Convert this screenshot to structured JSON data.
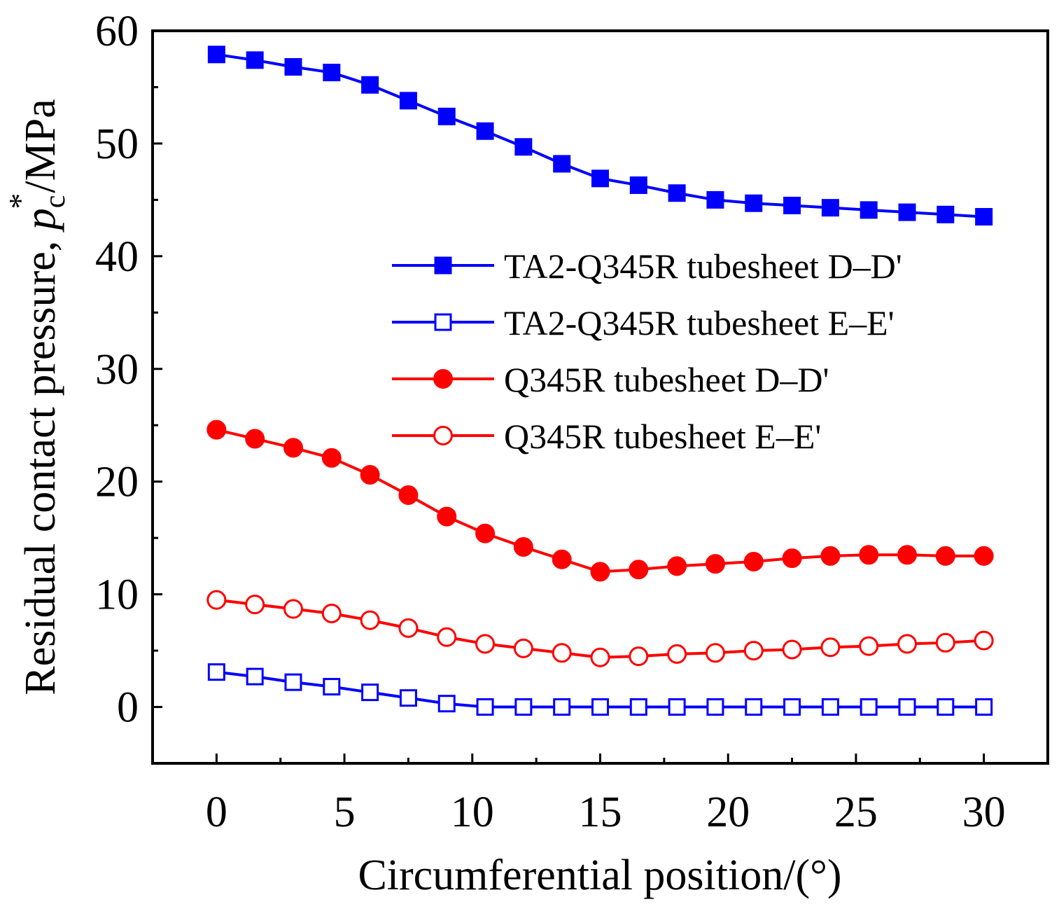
{
  "chart_data": {
    "type": "line",
    "xlabel": "Circumferential position/(°)",
    "ylabel": {
      "prefix": "Residual contact pressure, ",
      "symbol": "p",
      "subscript": "c",
      "superscript": "*",
      "suffix": "/MPa"
    },
    "xlim": [
      -2.5,
      32.5
    ],
    "ylim": [
      -5,
      60
    ],
    "xticks": [
      0,
      5,
      10,
      15,
      20,
      25,
      30
    ],
    "yticks": [
      0,
      10,
      20,
      30,
      40,
      50,
      60
    ],
    "xtick_labels": [
      "0",
      "5",
      "10",
      "15",
      "20",
      "25",
      "30"
    ],
    "ytick_labels": [
      "0",
      "10",
      "20",
      "30",
      "40",
      "50",
      "60"
    ],
    "legend_position": "center-right",
    "x": [
      0,
      1.5,
      3,
      4.5,
      6,
      7.5,
      9,
      10.5,
      12,
      13.5,
      15,
      16.5,
      18,
      19.5,
      21,
      22.5,
      24,
      25.5,
      27,
      28.5,
      30
    ],
    "series": [
      {
        "name": "TA2-Q345R tubesheet D–D'",
        "color": "#0000ff",
        "marker": "square",
        "filled": true,
        "values": [
          57.9,
          57.4,
          56.8,
          56.3,
          55.2,
          53.8,
          52.4,
          51.1,
          49.7,
          48.2,
          46.9,
          46.3,
          45.6,
          45.0,
          44.7,
          44.5,
          44.3,
          44.1,
          43.9,
          43.7,
          43.5
        ]
      },
      {
        "name": "TA2-Q345R tubesheet E–E'",
        "color": "#0000ff",
        "marker": "square",
        "filled": false,
        "values": [
          3.1,
          2.7,
          2.2,
          1.8,
          1.3,
          0.8,
          0.3,
          0.0,
          0.0,
          0.0,
          0.0,
          0.0,
          0.0,
          0.0,
          0.0,
          0.0,
          0.0,
          0.0,
          0.0,
          0.0,
          0.0
        ]
      },
      {
        "name": "Q345R tubesheet D–D'",
        "color": "#ff0000",
        "marker": "circle",
        "filled": true,
        "values": [
          24.6,
          23.8,
          23.0,
          22.1,
          20.6,
          18.8,
          16.9,
          15.4,
          14.2,
          13.1,
          12.0,
          12.2,
          12.5,
          12.7,
          12.9,
          13.2,
          13.4,
          13.5,
          13.5,
          13.4,
          13.4
        ]
      },
      {
        "name": "Q345R tubesheet E–E'",
        "color": "#ff0000",
        "marker": "circle",
        "filled": false,
        "values": [
          9.5,
          9.1,
          8.7,
          8.3,
          7.7,
          7.0,
          6.2,
          5.6,
          5.2,
          4.8,
          4.4,
          4.5,
          4.7,
          4.8,
          5.0,
          5.1,
          5.3,
          5.4,
          5.6,
          5.7,
          5.9
        ]
      }
    ]
  }
}
